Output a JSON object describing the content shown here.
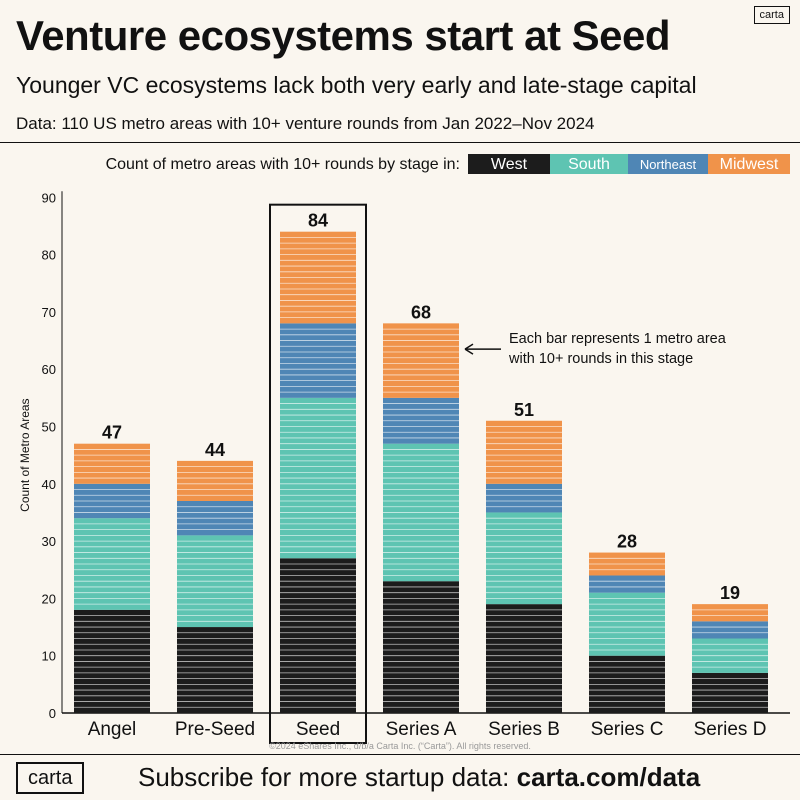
{
  "brand": {
    "small_logo": "carta",
    "footer_logo": "carta"
  },
  "header": {
    "title": "Venture ecosystems start at Seed",
    "subtitle": "Younger VC ecosystems lack both very early and late-stage capital",
    "data_note": "Data: 110 US metro areas with 10+ venture rounds from Jan 2022–Nov 2024"
  },
  "footer": {
    "text": "Subscribe for more startup data: ",
    "link": "carta.com/data"
  },
  "chart_data": {
    "type": "bar",
    "stacked": true,
    "categories": [
      "Angel",
      "Pre-Seed",
      "Seed",
      "Series A",
      "Series B",
      "Series C",
      "Series D"
    ],
    "series": [
      {
        "name": "West",
        "color": "#1c1c1c",
        "values": [
          18,
          15,
          27,
          23,
          19,
          10,
          7
        ]
      },
      {
        "name": "South",
        "color": "#5ec4b2",
        "values": [
          16,
          16,
          28,
          24,
          16,
          11,
          6
        ]
      },
      {
        "name": "Northeast",
        "color": "#4f86b5",
        "values": [
          6,
          6,
          13,
          8,
          5,
          3,
          3
        ]
      },
      {
        "name": "Midwest",
        "color": "#f0934a",
        "values": [
          7,
          7,
          16,
          13,
          11,
          4,
          3
        ]
      }
    ],
    "totals": [
      47,
      44,
      84,
      68,
      51,
      28,
      19
    ],
    "legend_label": "Count of metro areas with 10+ rounds by stage in:",
    "legend_position": "top",
    "ylabel": "Count of Metro Areas",
    "yticks": [
      0,
      10,
      20,
      30,
      40,
      50,
      60,
      70,
      80,
      90
    ],
    "ylim": [
      0,
      90
    ],
    "highlight_category": "Seed",
    "annotation": {
      "line1": "Each bar represents 1 metro area",
      "line2": "with 10+ rounds in this stage",
      "target_category": "Series A"
    },
    "copyright": "©2024 eShares Inc., d/b/a Carta Inc. (“Carta”). All rights reserved."
  }
}
